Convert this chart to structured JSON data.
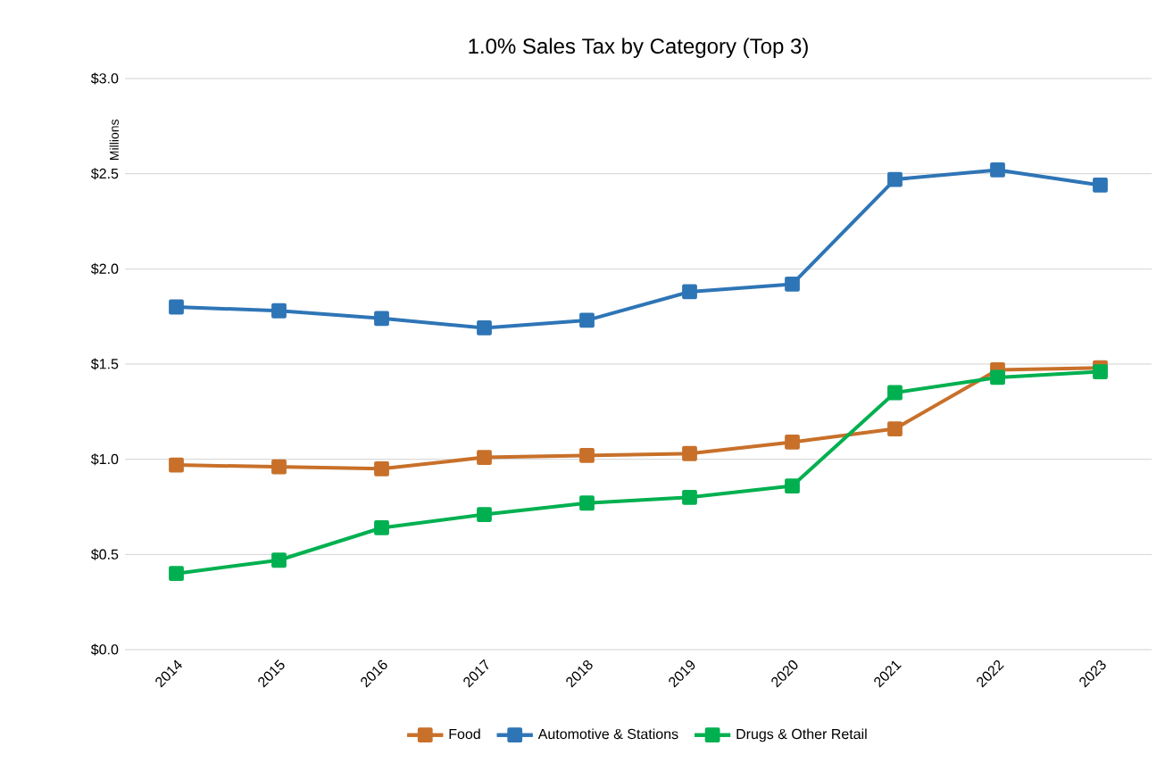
{
  "chart_data": {
    "type": "line",
    "title": "1.0% Sales Tax by Category (Top 3)",
    "ylabel": "Millions",
    "categories": [
      "2014",
      "2015",
      "2016",
      "2017",
      "2018",
      "2019",
      "2020",
      "2021",
      "2022",
      "2023"
    ],
    "series": [
      {
        "name": "Food",
        "color": "#c8702a",
        "values": [
          0.97,
          0.96,
          0.95,
          1.01,
          1.02,
          1.03,
          1.09,
          1.16,
          1.47,
          1.48
        ]
      },
      {
        "name": "Automotive & Stations",
        "color": "#2e75b6",
        "values": [
          1.8,
          1.78,
          1.74,
          1.69,
          1.73,
          1.88,
          1.92,
          2.47,
          2.52,
          2.44
        ]
      },
      {
        "name": "Drugs & Other Retail",
        "color": "#00b050",
        "values": [
          0.4,
          0.47,
          0.64,
          0.71,
          0.77,
          0.8,
          0.86,
          1.35,
          1.43,
          1.46
        ]
      }
    ],
    "ylim": [
      0,
      3
    ],
    "yticks": [
      {
        "value": 0,
        "label": "$0.0"
      },
      {
        "value": 0.5,
        "label": "$0.5"
      },
      {
        "value": 1,
        "label": "$1.0"
      },
      {
        "value": 1.5,
        "label": "$1.5"
      },
      {
        "value": 2,
        "label": "$2.0"
      },
      {
        "value": 2.5,
        "label": "$2.5"
      },
      {
        "value": 3,
        "label": "$3.0"
      }
    ],
    "grid": "y",
    "legend": "bottom",
    "marker": "square",
    "line_style": "solid"
  }
}
